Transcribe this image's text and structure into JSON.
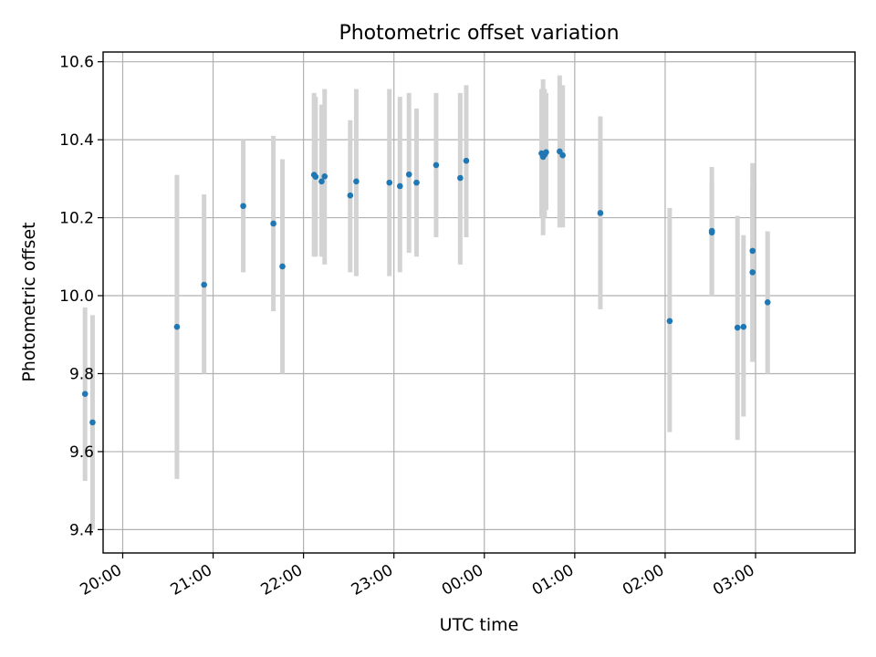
{
  "chart_data": {
    "type": "scatter",
    "title": "Photometric offset variation",
    "xlabel": "UTC time",
    "ylabel": "Photometric offset",
    "xlim": [
      "19:47",
      "04:06"
    ],
    "ylim": [
      9.34,
      10.625
    ],
    "xticks": [
      "20:00",
      "21:00",
      "22:00",
      "23:00",
      "00:00",
      "01:00",
      "02:00",
      "03:00"
    ],
    "yticks": [
      "9.4",
      "9.6",
      "9.8",
      "10.0",
      "10.2",
      "10.4",
      "10.6"
    ],
    "grid": true,
    "colors": {
      "points": "#1f77b4",
      "errorbars": "#d3d3d3",
      "grid": "#b0b0b0"
    },
    "series": [
      {
        "points": [
          {
            "x": "19:35",
            "y": 9.748,
            "ymin": 9.525,
            "ymax": 9.97
          },
          {
            "x": "19:40",
            "y": 9.675,
            "ymin": 9.4,
            "ymax": 9.95
          },
          {
            "x": "20:36",
            "y": 9.92,
            "ymin": 9.53,
            "ymax": 10.31
          },
          {
            "x": "20:54",
            "y": 10.028,
            "ymin": 9.8,
            "ymax": 10.26
          },
          {
            "x": "21:20",
            "y": 10.23,
            "ymin": 10.06,
            "ymax": 10.4
          },
          {
            "x": "21:40",
            "y": 10.185,
            "ymin": 9.96,
            "ymax": 10.41
          },
          {
            "x": "21:46",
            "y": 10.075,
            "ymin": 9.8,
            "ymax": 10.35
          },
          {
            "x": "22:07",
            "y": 10.31,
            "ymin": 10.1,
            "ymax": 10.52
          },
          {
            "x": "22:08",
            "y": 10.305,
            "ymin": 10.1,
            "ymax": 10.51
          },
          {
            "x": "22:12",
            "y": 10.293,
            "ymin": 10.1,
            "ymax": 10.49
          },
          {
            "x": "22:14",
            "y": 10.306,
            "ymin": 10.08,
            "ymax": 10.53
          },
          {
            "x": "22:31",
            "y": 10.257,
            "ymin": 10.06,
            "ymax": 10.45
          },
          {
            "x": "22:35",
            "y": 10.293,
            "ymin": 10.05,
            "ymax": 10.53
          },
          {
            "x": "22:57",
            "y": 10.29,
            "ymin": 10.05,
            "ymax": 10.53
          },
          {
            "x": "23:04",
            "y": 10.281,
            "ymin": 10.06,
            "ymax": 10.51
          },
          {
            "x": "23:10",
            "y": 10.311,
            "ymin": 10.11,
            "ymax": 10.52
          },
          {
            "x": "23:15",
            "y": 10.29,
            "ymin": 10.1,
            "ymax": 10.48
          },
          {
            "x": "23:28",
            "y": 10.335,
            "ymin": 10.15,
            "ymax": 10.52
          },
          {
            "x": "23:44",
            "y": 10.302,
            "ymin": 10.08,
            "ymax": 10.52
          },
          {
            "x": "23:48",
            "y": 10.346,
            "ymin": 10.15,
            "ymax": 10.54
          },
          {
            "x": "00:38",
            "y": 10.365,
            "ymin": 10.2,
            "ymax": 10.53
          },
          {
            "x": "00:39",
            "y": 10.356,
            "ymin": 10.155,
            "ymax": 10.555
          },
          {
            "x": "00:40",
            "y": 10.362,
            "ymin": 10.2,
            "ymax": 10.53
          },
          {
            "x": "00:41",
            "y": 10.368,
            "ymin": 10.22,
            "ymax": 10.52
          },
          {
            "x": "00:50",
            "y": 10.37,
            "ymin": 10.175,
            "ymax": 10.565
          },
          {
            "x": "00:52",
            "y": 10.36,
            "ymin": 10.175,
            "ymax": 10.54
          },
          {
            "x": "01:17",
            "y": 10.212,
            "ymin": 9.965,
            "ymax": 10.46
          },
          {
            "x": "02:03",
            "y": 9.935,
            "ymin": 9.65,
            "ymax": 10.225
          },
          {
            "x": "02:31",
            "y": 10.162,
            "ymin": 10.0,
            "ymax": 10.33
          },
          {
            "x": "02:31",
            "y": 10.166,
            "ymin": 10.0,
            "ymax": 10.29
          },
          {
            "x": "02:48",
            "y": 9.918,
            "ymin": 9.63,
            "ymax": 10.205
          },
          {
            "x": "02:52",
            "y": 9.92,
            "ymin": 9.69,
            "ymax": 10.155
          },
          {
            "x": "02:58",
            "y": 10.115,
            "ymin": 9.84,
            "ymax": 10.34
          },
          {
            "x": "02:58",
            "y": 10.06,
            "ymin": 9.83,
            "ymax": 10.28
          },
          {
            "x": "03:08",
            "y": 9.983,
            "ymin": 9.8,
            "ymax": 10.165
          }
        ]
      }
    ]
  }
}
